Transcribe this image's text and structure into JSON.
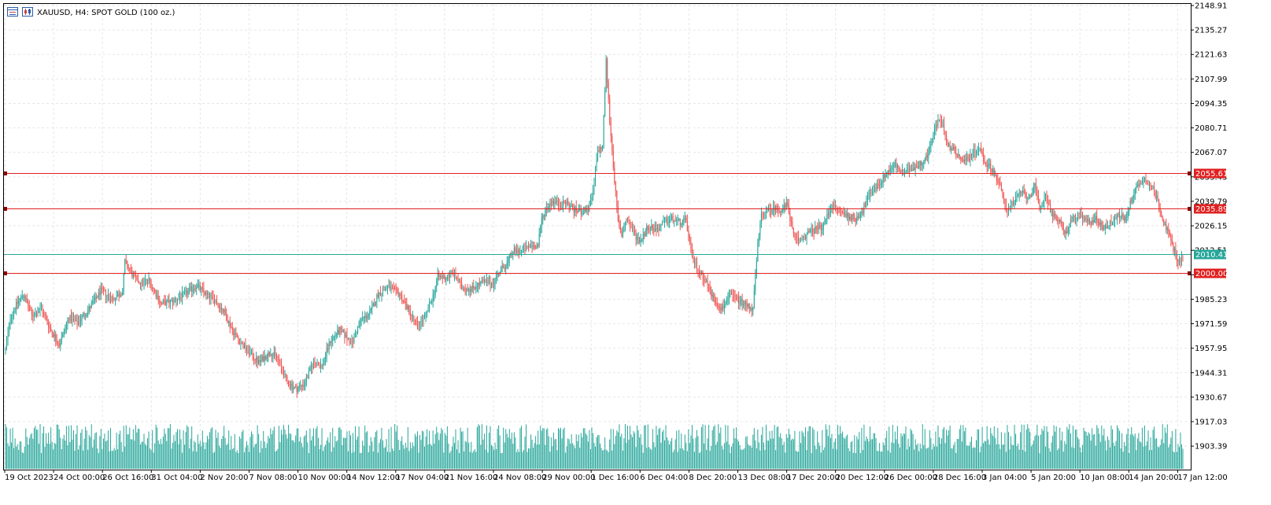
{
  "header": {
    "symbol": "XAUUSD",
    "timeframe": "H4",
    "description": "SPOT GOLD (100 oz.)",
    "title_text": "XAUUSD, H4:  SPOT GOLD (100 oz.)",
    "icons": [
      "chart-window-icon",
      "candlestick-icon"
    ]
  },
  "colors": {
    "up": "#26a69a",
    "down": "#ef5350",
    "volume": "#26a69a",
    "level_line": "#e02020",
    "current_price": "#26a69a",
    "grid": "#e6e6e6",
    "frame": "#000000"
  },
  "chart_data": {
    "type": "candlestick",
    "timeframe": "H4",
    "ylim": [
      1917.03,
      2148.91
    ],
    "y_ticks": [
      "2148.91",
      "2135.27",
      "2121.63",
      "2107.99",
      "2094.35",
      "2080.71",
      "2067.07",
      "2053.43",
      "2039.79",
      "2026.15",
      "2012.51",
      "1998.87",
      "1985.23",
      "1971.59",
      "1957.95",
      "1944.31",
      "1930.67",
      "1917.03",
      "1903.39"
    ],
    "x_ticks": [
      "19 Oct 2023",
      "24 Oct 00:00",
      "26 Oct 16:00",
      "31 Oct 04:00",
      "2 Nov 20:00",
      "7 Nov 08:00",
      "10 Nov 00:00",
      "14 Nov 12:00",
      "17 Nov 04:00",
      "21 Nov 16:00",
      "24 Nov 08:00",
      "29 Nov 00:00",
      "1 Dec 16:00",
      "6 Dec 04:00",
      "8 Dec 20:00",
      "13 Dec 08:00",
      "17 Dec 20:00",
      "20 Dec 12:00",
      "26 Dec 00:00",
      "28 Dec 16:00",
      "3 Jan 04:00",
      "5 Jan 20:00",
      "10 Jan 08:00",
      "14 Jan 20:00",
      "17 Jan 12:00"
    ],
    "price_path": [
      {
        "t": 0,
        "p": 1957
      },
      {
        "t": 4,
        "p": 1975
      },
      {
        "t": 9,
        "p": 1982
      },
      {
        "t": 15,
        "p": 1988
      },
      {
        "t": 22,
        "p": 1976
      },
      {
        "t": 30,
        "p": 1980
      },
      {
        "t": 38,
        "p": 1968
      },
      {
        "t": 45,
        "p": 1960
      },
      {
        "t": 53,
        "p": 1975
      },
      {
        "t": 60,
        "p": 1972
      },
      {
        "t": 70,
        "p": 1980
      },
      {
        "t": 80,
        "p": 1990
      },
      {
        "t": 90,
        "p": 1985
      },
      {
        "t": 98,
        "p": 1990
      },
      {
        "t": 100,
        "p": 2006
      },
      {
        "t": 107,
        "p": 1998
      },
      {
        "t": 114,
        "p": 1994
      },
      {
        "t": 120,
        "p": 1996
      },
      {
        "t": 130,
        "p": 1983
      },
      {
        "t": 140,
        "p": 1984
      },
      {
        "t": 150,
        "p": 1988
      },
      {
        "t": 160,
        "p": 1993
      },
      {
        "t": 168,
        "p": 1988
      },
      {
        "t": 175,
        "p": 1985
      },
      {
        "t": 183,
        "p": 1978
      },
      {
        "t": 190,
        "p": 1968
      },
      {
        "t": 198,
        "p": 1960
      },
      {
        "t": 205,
        "p": 1955
      },
      {
        "t": 212,
        "p": 1950
      },
      {
        "t": 222,
        "p": 1956
      },
      {
        "t": 228,
        "p": 1952
      },
      {
        "t": 235,
        "p": 1940
      },
      {
        "t": 243,
        "p": 1935
      },
      {
        "t": 250,
        "p": 1938
      },
      {
        "t": 258,
        "p": 1950
      },
      {
        "t": 265,
        "p": 1948
      },
      {
        "t": 272,
        "p": 1962
      },
      {
        "t": 280,
        "p": 1968
      },
      {
        "t": 290,
        "p": 1961
      },
      {
        "t": 298,
        "p": 1974
      },
      {
        "t": 305,
        "p": 1977
      },
      {
        "t": 312,
        "p": 1988
      },
      {
        "t": 320,
        "p": 1992
      },
      {
        "t": 330,
        "p": 1988
      },
      {
        "t": 337,
        "p": 1980
      },
      {
        "t": 345,
        "p": 1970
      },
      {
        "t": 352,
        "p": 1976
      },
      {
        "t": 358,
        "p": 1987
      },
      {
        "t": 362,
        "p": 1998
      },
      {
        "t": 368,
        "p": 1997
      },
      {
        "t": 375,
        "p": 2000
      },
      {
        "t": 382,
        "p": 1992
      },
      {
        "t": 390,
        "p": 1991
      },
      {
        "t": 400,
        "p": 1995
      },
      {
        "t": 408,
        "p": 1994
      },
      {
        "t": 414,
        "p": 2001
      },
      {
        "t": 420,
        "p": 2005
      },
      {
        "t": 425,
        "p": 2012
      },
      {
        "t": 432,
        "p": 2012
      },
      {
        "t": 440,
        "p": 2015
      },
      {
        "t": 446,
        "p": 2015
      },
      {
        "t": 449,
        "p": 2030
      },
      {
        "t": 453,
        "p": 2036
      },
      {
        "t": 458,
        "p": 2040
      },
      {
        "t": 465,
        "p": 2038
      },
      {
        "t": 470,
        "p": 2039
      },
      {
        "t": 476,
        "p": 2035
      },
      {
        "t": 483,
        "p": 2034
      },
      {
        "t": 489,
        "p": 2036
      },
      {
        "t": 492,
        "p": 2045
      },
      {
        "t": 496,
        "p": 2068
      },
      {
        "t": 500,
        "p": 2070
      },
      {
        "t": 503,
        "p": 2118
      },
      {
        "t": 506,
        "p": 2085
      },
      {
        "t": 509,
        "p": 2060
      },
      {
        "t": 513,
        "p": 2028
      },
      {
        "t": 516,
        "p": 2021
      },
      {
        "t": 520,
        "p": 2030
      },
      {
        "t": 524,
        "p": 2025
      },
      {
        "t": 528,
        "p": 2020
      },
      {
        "t": 532,
        "p": 2018
      },
      {
        "t": 538,
        "p": 2026
      },
      {
        "t": 545,
        "p": 2024
      },
      {
        "t": 552,
        "p": 2028
      },
      {
        "t": 558,
        "p": 2030
      },
      {
        "t": 565,
        "p": 2028
      },
      {
        "t": 570,
        "p": 2029
      },
      {
        "t": 575,
        "p": 2008
      },
      {
        "t": 580,
        "p": 2002
      },
      {
        "t": 587,
        "p": 1995
      },
      {
        "t": 593,
        "p": 1985
      },
      {
        "t": 600,
        "p": 1980
      },
      {
        "t": 607,
        "p": 1988
      },
      {
        "t": 613,
        "p": 1985
      },
      {
        "t": 620,
        "p": 1982
      },
      {
        "t": 626,
        "p": 1980
      },
      {
        "t": 630,
        "p": 2015
      },
      {
        "t": 633,
        "p": 2032
      },
      {
        "t": 638,
        "p": 2034
      },
      {
        "t": 644,
        "p": 2036
      },
      {
        "t": 650,
        "p": 2035
      },
      {
        "t": 655,
        "p": 2038
      },
      {
        "t": 660,
        "p": 2020
      },
      {
        "t": 665,
        "p": 2018
      },
      {
        "t": 672,
        "p": 2022
      },
      {
        "t": 678,
        "p": 2024
      },
      {
        "t": 685,
        "p": 2026
      },
      {
        "t": 692,
        "p": 2038
      },
      {
        "t": 698,
        "p": 2034
      },
      {
        "t": 705,
        "p": 2032
      },
      {
        "t": 712,
        "p": 2030
      },
      {
        "t": 718,
        "p": 2035
      },
      {
        "t": 725,
        "p": 2045
      },
      {
        "t": 732,
        "p": 2050
      },
      {
        "t": 738,
        "p": 2056
      },
      {
        "t": 745,
        "p": 2060
      },
      {
        "t": 752,
        "p": 2055
      },
      {
        "t": 758,
        "p": 2058
      },
      {
        "t": 765,
        "p": 2060
      },
      {
        "t": 772,
        "p": 2065
      },
      {
        "t": 778,
        "p": 2080
      },
      {
        "t": 782,
        "p": 2085
      },
      {
        "t": 785,
        "p": 2082
      },
      {
        "t": 790,
        "p": 2070
      },
      {
        "t": 795,
        "p": 2068
      },
      {
        "t": 802,
        "p": 2062
      },
      {
        "t": 808,
        "p": 2065
      },
      {
        "t": 815,
        "p": 2070
      },
      {
        "t": 820,
        "p": 2062
      },
      {
        "t": 827,
        "p": 2057
      },
      {
        "t": 833,
        "p": 2048
      },
      {
        "t": 838,
        "p": 2035
      },
      {
        "t": 843,
        "p": 2038
      },
      {
        "t": 850,
        "p": 2045
      },
      {
        "t": 857,
        "p": 2042
      },
      {
        "t": 862,
        "p": 2048
      },
      {
        "t": 866,
        "p": 2035
      },
      {
        "t": 871,
        "p": 2043
      },
      {
        "t": 877,
        "p": 2032
      },
      {
        "t": 883,
        "p": 2028
      },
      {
        "t": 888,
        "p": 2022
      },
      {
        "t": 893,
        "p": 2030
      },
      {
        "t": 900,
        "p": 2032
      },
      {
        "t": 906,
        "p": 2028
      },
      {
        "t": 913,
        "p": 2030
      },
      {
        "t": 920,
        "p": 2025
      },
      {
        "t": 926,
        "p": 2028
      },
      {
        "t": 932,
        "p": 2032
      },
      {
        "t": 938,
        "p": 2030
      },
      {
        "t": 945,
        "p": 2045
      },
      {
        "t": 950,
        "p": 2050
      },
      {
        "t": 955,
        "p": 2052
      },
      {
        "t": 960,
        "p": 2048
      },
      {
        "t": 965,
        "p": 2040
      },
      {
        "t": 970,
        "p": 2028
      },
      {
        "t": 975,
        "p": 2020
      },
      {
        "t": 980,
        "p": 2010
      },
      {
        "t": 983,
        "p": 2006
      },
      {
        "t": 986,
        "p": 2008
      }
    ],
    "horizontal_levels": [
      {
        "value": 2055.61,
        "label": "2055.61",
        "kind": "level"
      },
      {
        "value": 2035.89,
        "label": "2035.89",
        "kind": "level"
      },
      {
        "value": 2010.41,
        "label": "2010.41",
        "kind": "current_price"
      },
      {
        "value": 2000.0,
        "label": "2000.00",
        "kind": "level"
      }
    ],
    "grid": true,
    "volume_subpanel": true
  }
}
